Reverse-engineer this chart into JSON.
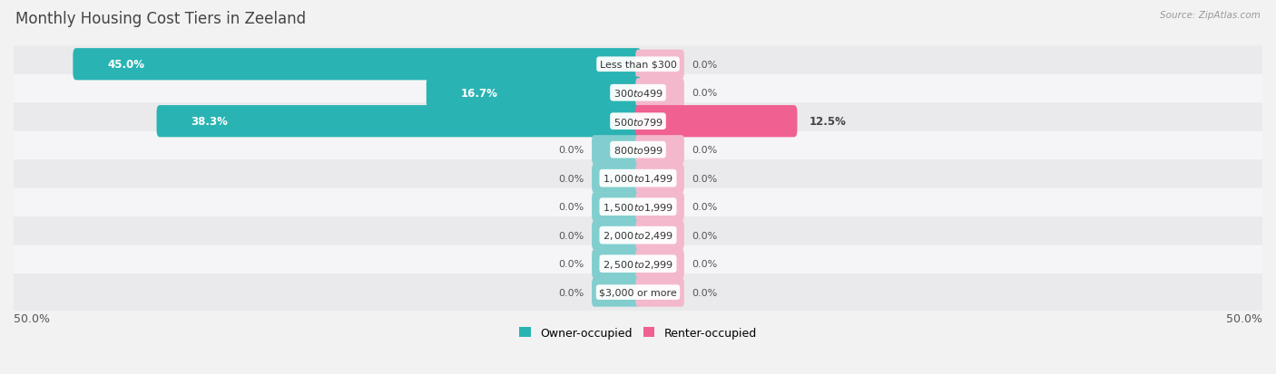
{
  "title": "Monthly Housing Cost Tiers in Zeeland",
  "source": "Source: ZipAtlas.com",
  "categories": [
    "Less than $300",
    "$300 to $499",
    "$500 to $799",
    "$800 to $999",
    "$1,000 to $1,499",
    "$1,500 to $1,999",
    "$2,000 to $2,499",
    "$2,500 to $2,999",
    "$3,000 or more"
  ],
  "owner_values": [
    45.0,
    16.7,
    38.3,
    0.0,
    0.0,
    0.0,
    0.0,
    0.0,
    0.0
  ],
  "renter_values": [
    0.0,
    0.0,
    12.5,
    0.0,
    0.0,
    0.0,
    0.0,
    0.0,
    0.0
  ],
  "owner_color_strong": "#2ab3b3",
  "owner_color_light": "#82cece",
  "renter_color_strong": "#f06090",
  "renter_color_light": "#f4b8cc",
  "bg_color": "#f2f2f2",
  "row_color_odd": "#eaeaed",
  "row_color_even": "#f5f5f7",
  "title_fontsize": 12,
  "axis_max": 50.0,
  "legend_owner": "Owner-occupied",
  "legend_renter": "Renter-occupied",
  "stub_size": 3.5
}
